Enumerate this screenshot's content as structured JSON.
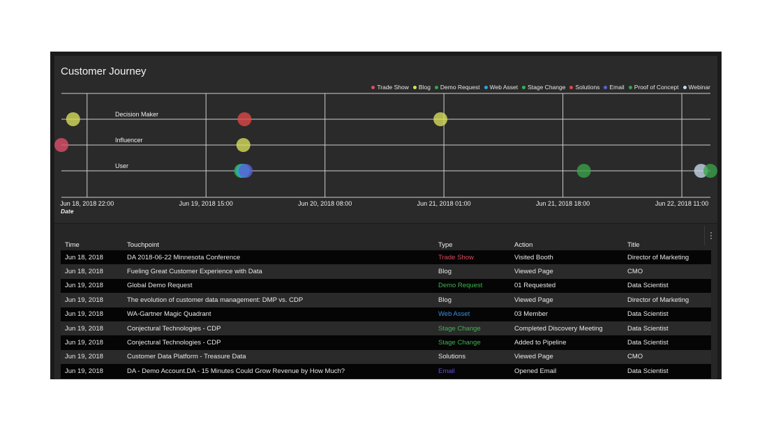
{
  "chart_data": {
    "type": "scatter",
    "title": "Customer Journey",
    "xlabel": "Date",
    "x_ticks": [
      "Jun 18, 2018 22:00",
      "Jun 19, 2018 15:00",
      "Jun 20, 2018 08:00",
      "Jun 21, 2018 01:00",
      "Jun 21, 2018 18:00",
      "Jun 22, 2018 11:00"
    ],
    "xlim": [
      "2018-06-18T18:20",
      "2018-06-22T15:05"
    ],
    "lanes": [
      "Decision Maker",
      "Influencer",
      "User"
    ],
    "legend_position": "top-right",
    "legend": [
      {
        "name": "Trade Show",
        "color": "#e04e6a"
      },
      {
        "name": "Blog",
        "color": "#d8e05a"
      },
      {
        "name": "Demo Request",
        "color": "#3aa34a"
      },
      {
        "name": "Web Asset",
        "color": "#2aa7d8"
      },
      {
        "name": "Stage Change",
        "color": "#2fb35a"
      },
      {
        "name": "Solutions",
        "color": "#e04848"
      },
      {
        "name": "Email",
        "color": "#5a62d0"
      },
      {
        "name": "Proof of Concept",
        "color": "#3aa34a"
      },
      {
        "name": "Webinar",
        "color": "#c8d8ea"
      }
    ],
    "points": [
      {
        "x": "2018-06-18T20:00",
        "lane": "Decision Maker",
        "type": "Blog"
      },
      {
        "x": "2018-06-19T20:30",
        "lane": "Decision Maker",
        "type": "Solutions"
      },
      {
        "x": "2018-06-21T00:30",
        "lane": "Decision Maker",
        "type": "Blog"
      },
      {
        "x": "2018-06-18T18:20",
        "lane": "Influencer",
        "type": "Trade Show"
      },
      {
        "x": "2018-06-19T20:20",
        "lane": "Influencer",
        "type": "Blog"
      },
      {
        "x": "2018-06-19T20:00",
        "lane": "User",
        "type": "Demo Request"
      },
      {
        "x": "2018-06-19T20:10",
        "lane": "User",
        "type": "Stage Change"
      },
      {
        "x": "2018-06-19T20:20",
        "lane": "User",
        "type": "Web Asset"
      },
      {
        "x": "2018-06-19T20:40",
        "lane": "User",
        "type": "Email"
      },
      {
        "x": "2018-06-21T21:00",
        "lane": "User",
        "type": "Proof of Concept"
      },
      {
        "x": "2018-06-22T13:45",
        "lane": "User",
        "type": "Webinar"
      },
      {
        "x": "2018-06-22T15:05",
        "lane": "User",
        "type": "Proof of Concept"
      }
    ]
  },
  "table": {
    "columns": {
      "time": "Time",
      "touchpoint": "Touchpoint",
      "type": "Type",
      "action": "Action",
      "title": "Title"
    },
    "type_colors": {
      "Trade Show": "#d94a5c",
      "Demo Request": "#3fb34f",
      "Web Asset": "#3a8fd8",
      "Stage Change": "#3fb34f",
      "Email": "#6a4bd8",
      "Blog": "#e8e8e8",
      "Solutions": "#e8e8e8"
    },
    "rows": [
      {
        "time": "Jun 18, 2018",
        "touchpoint": "DA 2018-06-22 Minnesota Conference",
        "type": "Trade Show",
        "action": "Visited Booth",
        "title": "Director of Marketing"
      },
      {
        "time": "Jun 18, 2018",
        "touchpoint": "Fueling Great Customer Experience with Data",
        "type": "Blog",
        "action": "Viewed Page",
        "title": "CMO"
      },
      {
        "time": "Jun 19, 2018",
        "touchpoint": "Global Demo Request",
        "type": "Demo Request",
        "action": "01 Requested",
        "title": "Data Scientist"
      },
      {
        "time": "Jun 19, 2018",
        "touchpoint": "The evolution of customer data management: DMP vs. CDP",
        "type": "Blog",
        "action": "Viewed Page",
        "title": "Director of Marketing"
      },
      {
        "time": "Jun 19, 2018",
        "touchpoint": "WA-Gartner Magic Quadrant",
        "type": "Web Asset",
        "action": "03 Member",
        "title": "Data Scientist"
      },
      {
        "time": "Jun 19, 2018",
        "touchpoint": "Conjectural Technologies - CDP",
        "type": "Stage Change",
        "action": "Completed Discovery Meeting",
        "title": "Data Scientist"
      },
      {
        "time": "Jun 19, 2018",
        "touchpoint": "Conjectural Technologies - CDP",
        "type": "Stage Change",
        "action": "Added to Pipeline",
        "title": "Data Scientist"
      },
      {
        "time": "Jun 19, 2018",
        "touchpoint": "Customer Data Platform - Treasure Data",
        "type": "Solutions",
        "action": "Viewed Page",
        "title": "CMO"
      },
      {
        "time": "Jun 19, 2018",
        "touchpoint": "DA - Demo Account.DA - 15 Minutes Could Grow Revenue by How Much?",
        "type": "Email",
        "action": "Opened Email",
        "title": "Data Scientist"
      }
    ]
  }
}
